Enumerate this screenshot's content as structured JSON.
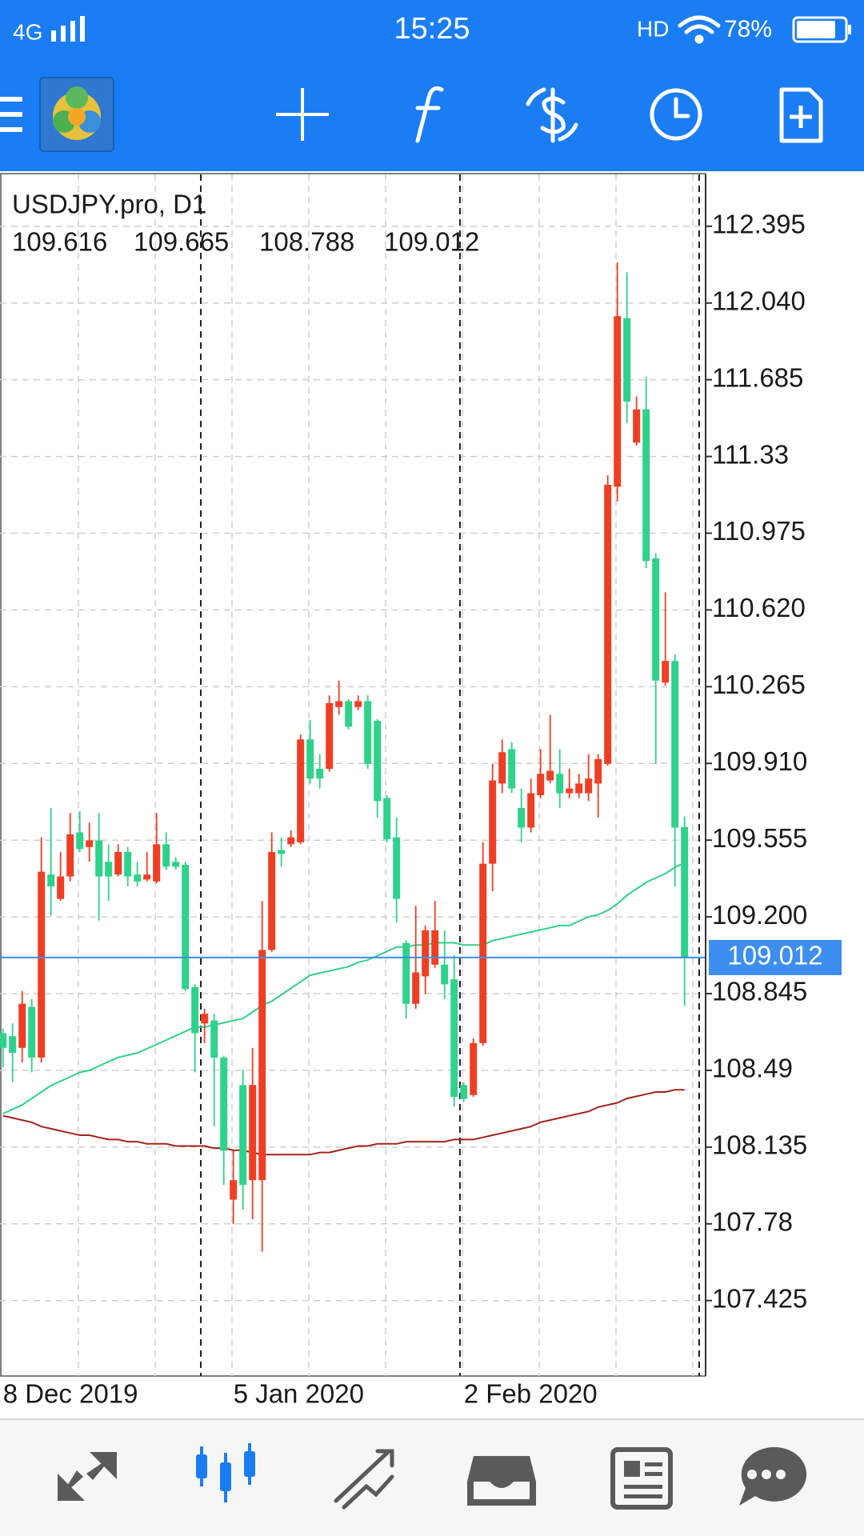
{
  "status_bar": {
    "network": "4G",
    "time": "15:25",
    "hd": "HD",
    "battery": "78%"
  },
  "chart_data": {
    "type": "candlestick",
    "title": "USDJPY.pro, D1",
    "categories": [
      "8 Dec 2019",
      null,
      null,
      null,
      null,
      null,
      null,
      null,
      null,
      null,
      null,
      null,
      null,
      null,
      null,
      null,
      null,
      null,
      null,
      null,
      null,
      null,
      null,
      null,
      "5 Jan 2020",
      null,
      null,
      null,
      null,
      null,
      null,
      null,
      null,
      null,
      null,
      null,
      null,
      null,
      null,
      null,
      null,
      null,
      null,
      null,
      null,
      null,
      null,
      null,
      "2 Feb 2020",
      null,
      null,
      null,
      null,
      null,
      null,
      null,
      null,
      null,
      null,
      null,
      null,
      null,
      null,
      null,
      null,
      null,
      null,
      null,
      null,
      null,
      null,
      null
    ],
    "open": [
      108.662,
      108.648,
      108.594,
      108.784,
      108.549,
      109.396,
      109.283,
      109.387,
      109.591,
      109.523,
      109.554,
      109.455,
      109.396,
      109.5,
      109.396,
      109.373,
      109.364,
      109.536,
      109.455,
      109.441,
      108.875,
      108.707,
      108.721,
      108.549,
      107.892,
      108.422,
      107.982,
      107.982,
      109.047,
      109.509,
      109.536,
      109.545,
      110.021,
      109.885,
      109.885,
      110.171,
      110.198,
      110.171,
      110.198,
      110.107,
      109.75,
      109.568,
      109.079,
      108.798,
      108.925,
      108.979,
      108.979,
      108.911,
      108.422,
      108.376,
      108.616,
      109.446,
      109.817,
      109.976,
      109.704,
      109.613,
      109.763,
      109.831,
      109.862,
      109.772,
      109.772,
      109.772,
      109.817,
      109.908,
      111.19,
      111.97,
      111.394,
      111.548,
      110.859,
      110.284,
      110.384,
      109.616
    ],
    "high": [
      108.684,
      108.707,
      108.857,
      108.82,
      109.568,
      109.704,
      109.5,
      109.681,
      109.69,
      109.636,
      109.681,
      109.536,
      109.536,
      109.523,
      109.455,
      109.5,
      109.681,
      109.591,
      109.477,
      109.455,
      108.888,
      108.775,
      108.752,
      108.558,
      108.118,
      108.494,
      108.594,
      109.274,
      109.591,
      109.568,
      109.6,
      110.044,
      110.112,
      109.953,
      110.225,
      110.293,
      110.207,
      110.225,
      110.225,
      110.116,
      109.763,
      109.659,
      109.092,
      109.251,
      109.16,
      109.274,
      109.138,
      109.024,
      108.435,
      108.639,
      109.545,
      109.908,
      110.021,
      110.008,
      109.794,
      109.84,
      109.976,
      110.135,
      109.976,
      109.885,
      109.862,
      109.953,
      109.953,
      111.244,
      112.228,
      112.182,
      111.607,
      111.698,
      110.882,
      110.701,
      110.415,
      109.665
    ],
    "low": [
      108.503,
      108.435,
      108.526,
      108.481,
      108.526,
      109.206,
      109.274,
      109.364,
      109.5,
      109.455,
      109.183,
      109.274,
      109.387,
      109.341,
      109.341,
      109.364,
      109.355,
      109.418,
      109.418,
      108.857,
      108.481,
      108.616,
      108.231,
      107.96,
      107.778,
      107.846,
      107.801,
      107.651,
      109.038,
      109.432,
      109.523,
      109.536,
      109.817,
      109.794,
      109.872,
      110.135,
      110.067,
      110.157,
      109.885,
      109.659,
      109.545,
      109.174,
      108.73,
      108.775,
      108.843,
      108.965,
      108.82,
      108.322,
      108.344,
      108.367,
      108.603,
      109.319,
      109.772,
      109.772,
      109.545,
      109.591,
      109.749,
      109.817,
      109.704,
      109.749,
      109.749,
      109.736,
      109.659,
      109.899,
      111.122,
      111.485,
      111.38,
      110.814,
      109.908,
      110.27,
      109.341,
      108.788
    ],
    "close": [
      108.594,
      108.571,
      108.798,
      108.549,
      109.409,
      109.341,
      109.387,
      109.582,
      109.514,
      109.554,
      109.387,
      109.387,
      109.5,
      109.387,
      109.364,
      109.396,
      109.536,
      109.432,
      109.432,
      108.866,
      108.662,
      108.752,
      108.549,
      108.118,
      107.982,
      107.96,
      108.422,
      109.047,
      109.5,
      109.491,
      109.568,
      110.021,
      109.84,
      109.84,
      110.189,
      110.198,
      110.08,
      110.198,
      109.908,
      109.736,
      109.559,
      109.283,
      108.798,
      108.943,
      109.138,
      109.138,
      108.888,
      108.367,
      108.358,
      108.616,
      109.446,
      109.831,
      109.962,
      109.794,
      109.613,
      109.772,
      109.862,
      109.876,
      109.772,
      109.794,
      109.817,
      109.84,
      109.93,
      111.199,
      111.979,
      111.584,
      111.548,
      110.846,
      110.293,
      110.384,
      109.613,
      109.012
    ],
    "up_color": "#ee3f25",
    "down_color": "#2fd28b",
    "series": [
      {
        "color": "#2fd28b",
        "values": [
          108.29,
          108.31,
          108.33,
          108.36,
          108.39,
          108.42,
          108.44,
          108.46,
          108.48,
          108.49,
          108.51,
          108.53,
          108.55,
          108.56,
          108.57,
          108.59,
          108.61,
          108.63,
          108.65,
          108.67,
          108.69,
          108.69,
          108.7,
          108.71,
          108.72,
          108.73,
          108.76,
          108.79,
          108.81,
          108.84,
          108.87,
          108.9,
          108.93,
          108.94,
          108.95,
          108.96,
          108.97,
          108.99,
          109,
          109.02,
          109.04,
          109.06,
          109.06,
          109.07,
          109.07,
          109.08,
          109.08,
          109.08,
          109.07,
          109.07,
          109.07,
          109.09,
          109.1,
          109.11,
          109.12,
          109.13,
          109.14,
          109.15,
          109.16,
          109.16,
          109.18,
          109.2,
          109.21,
          109.23,
          109.26,
          109.3,
          109.33,
          109.36,
          109.38,
          109.4,
          109.43,
          109.45
        ]
      },
      {
        "color": "#a3231b",
        "values": [
          108.28,
          108.27,
          108.26,
          108.25,
          108.23,
          108.22,
          108.21,
          108.2,
          108.19,
          108.19,
          108.18,
          108.17,
          108.17,
          108.16,
          108.16,
          108.15,
          108.15,
          108.15,
          108.14,
          108.14,
          108.14,
          108.14,
          108.13,
          108.13,
          108.12,
          108.12,
          108.11,
          108.1,
          108.1,
          108.1,
          108.1,
          108.1,
          108.1,
          108.11,
          108.11,
          108.12,
          108.13,
          108.14,
          108.14,
          108.15,
          108.15,
          108.15,
          108.16,
          108.16,
          108.16,
          108.16,
          108.16,
          108.17,
          108.17,
          108.17,
          108.18,
          108.19,
          108.2,
          108.21,
          108.22,
          108.23,
          108.25,
          108.26,
          108.27,
          108.28,
          108.29,
          108.3,
          108.32,
          108.33,
          108.34,
          108.36,
          108.37,
          108.38,
          108.39,
          108.39,
          108.4,
          108.4
        ]
      }
    ],
    "price_line_color": "#3d8ef0",
    "ylim": [
      107.076,
      112.635
    ],
    "yticks": [
      112.395,
      {
        "value": 112.04,
        "label": "112.040"
      },
      111.685,
      111.33,
      110.975,
      {
        "value": 110.62,
        "label": "110.620"
      },
      110.265,
      {
        "value": 109.91,
        "label": "109.910"
      },
      109.555,
      {
        "value": 109.2,
        "label": "109.200"
      },
      108.845,
      108.49,
      108.135,
      107.78,
      107.425
    ],
    "grid": true
  }
}
